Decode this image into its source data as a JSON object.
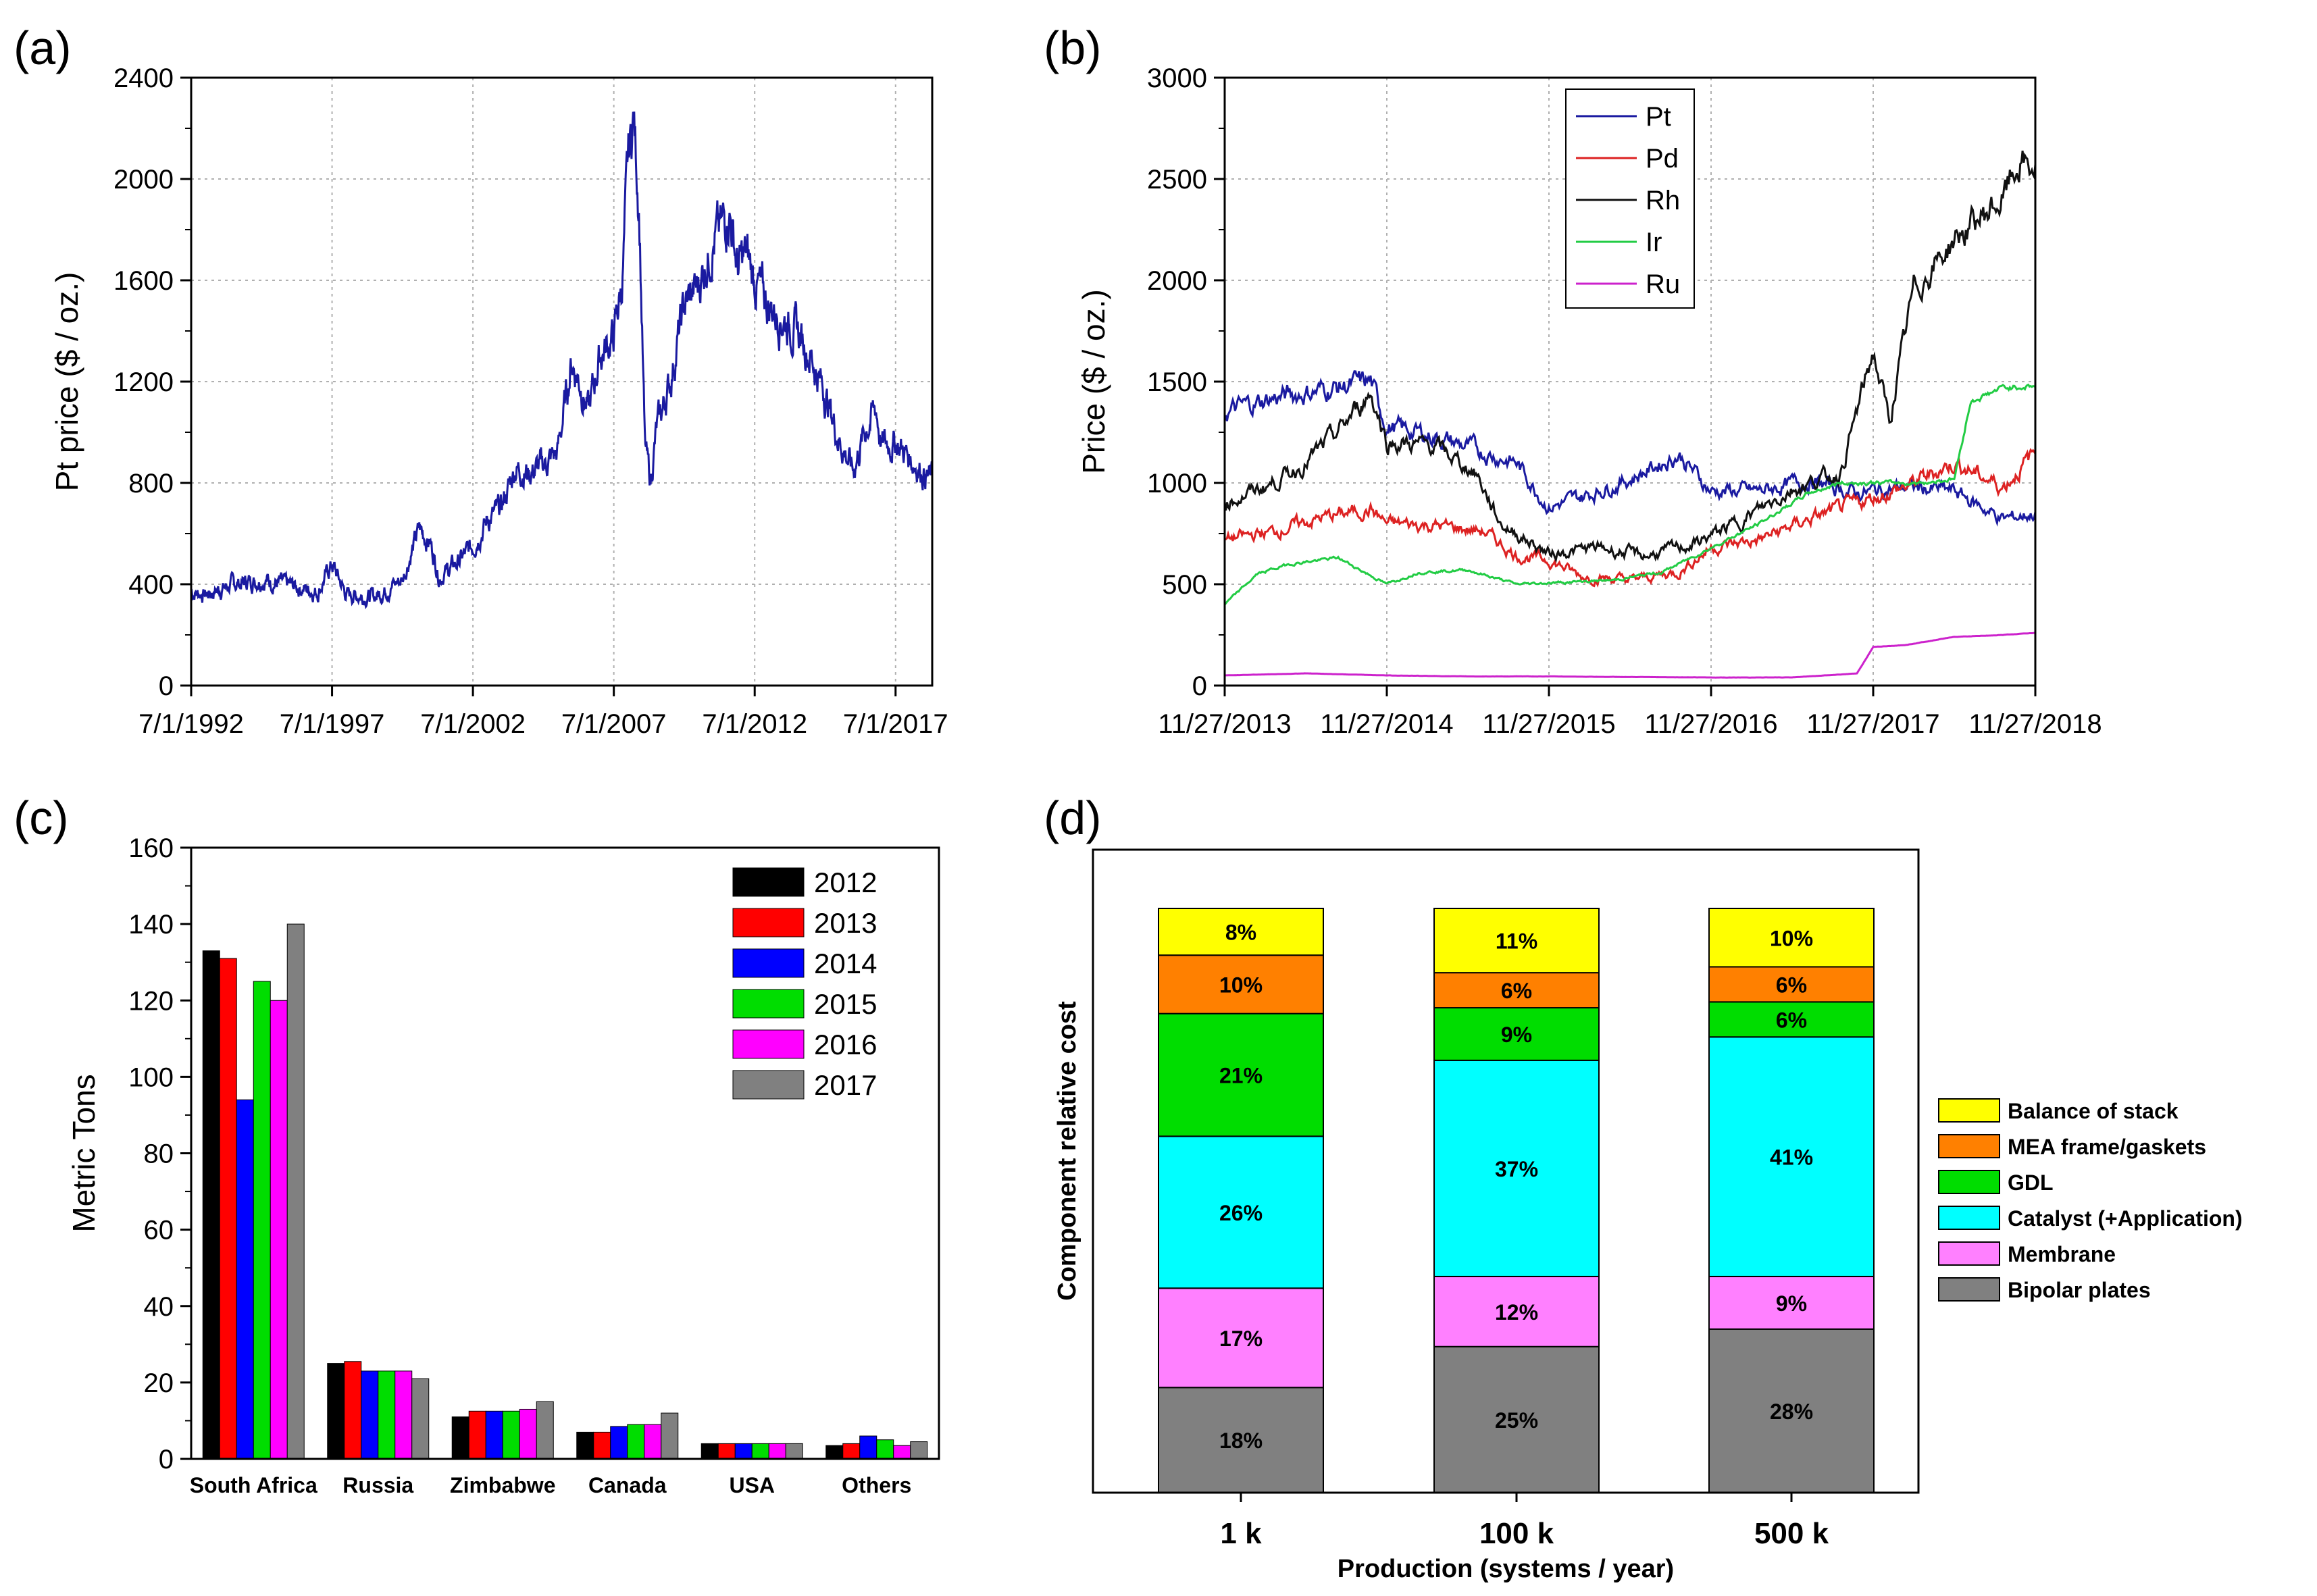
{
  "panels": {
    "a": {
      "label": "(a)",
      "chart_data": {
        "type": "line",
        "title": "",
        "xlabel": "",
        "ylabel": "Pt price ($ / oz.)",
        "xlim": [
          1992.5,
          2018.8
        ],
        "ylim": [
          0,
          2400
        ],
        "yticks": [
          0,
          400,
          800,
          1200,
          1600,
          2000,
          2400
        ],
        "xticks": [
          {
            "x": 1992.5,
            "label": "7/1/1992"
          },
          {
            "x": 1997.5,
            "label": "7/1/1997"
          },
          {
            "x": 2002.5,
            "label": "7/1/2002"
          },
          {
            "x": 2007.5,
            "label": "7/1/2007"
          },
          {
            "x": 2012.5,
            "label": "7/1/2012"
          },
          {
            "x": 2017.5,
            "label": "7/1/2017"
          }
        ],
        "grid": true,
        "series": [
          {
            "name": "Pt",
            "color": "#1a1aa0",
            "x": [
              1992.5,
              1993,
              1994,
              1995,
              1996,
              1997,
              1997.5,
              1998,
              1999,
              2000,
              2000.6,
              2001,
              2001.3,
              2001.9,
              2002.5,
              2003,
              2003.5,
              2004,
              2004.5,
              2005,
              2005.5,
              2006,
              2006.3,
              2006.6,
              2007,
              2007.5,
              2007.8,
              2008,
              2008.2,
              2008.4,
              2008.6,
              2008.8,
              2009,
              2009.5,
              2010,
              2010.5,
              2011,
              2011.3,
              2011.6,
              2011.9,
              2012.2,
              2012.5,
              2013,
              2013.5,
              2014,
              2014.5,
              2015,
              2015.5,
              2016,
              2016.4,
              2016.8,
              2017,
              2017.5,
              2018,
              2018.5,
              2018.8
            ],
            "y": [
              370,
              360,
              400,
              420,
              395,
              370,
              480,
              360,
              350,
              420,
              620,
              560,
              430,
              480,
              550,
              650,
              700,
              860,
              840,
              870,
              920,
              1280,
              1200,
              1080,
              1300,
              1380,
              1600,
              2050,
              2250,
              1900,
              950,
              800,
              1000,
              1200,
              1500,
              1580,
              1750,
              1800,
              1880,
              1650,
              1700,
              1600,
              1500,
              1450,
              1400,
              1300,
              1150,
              970,
              850,
              1000,
              1100,
              950,
              960,
              900,
              840,
              820
            ]
          }
        ]
      }
    },
    "b": {
      "label": "(b)",
      "chart_data": {
        "type": "line",
        "title": "",
        "xlabel": "",
        "ylabel": "Price ($ / oz.)",
        "xlim": [
          0,
          5
        ],
        "ylim": [
          0,
          3000
        ],
        "yticks": [
          0,
          500,
          1000,
          1500,
          2000,
          2500,
          3000
        ],
        "xticks": [
          "11/27/2013",
          "11/27/2014",
          "11/27/2015",
          "11/27/2016",
          "11/27/2017",
          "11/27/2018"
        ],
        "legend_position": "top-left",
        "grid": true,
        "series": [
          {
            "name": "Pt",
            "color": "#1a1aa0",
            "x": [
              0,
              0.3,
              0.6,
              0.9,
              1.0,
              1.3,
              1.6,
              1.8,
              2.0,
              2.2,
              2.5,
              2.8,
              3.0,
              3.3,
              3.6,
              3.9,
              4.2,
              4.5,
              4.8,
              5.0
            ],
            "y": [
              1350,
              1420,
              1460,
              1500,
              1280,
              1230,
              1150,
              1100,
              880,
              930,
              1020,
              1140,
              960,
              960,
              1010,
              950,
              980,
              960,
              820,
              850
            ]
          },
          {
            "name": "Pd",
            "color": "#dd2222",
            "x": [
              0,
              0.3,
              0.6,
              0.9,
              1.0,
              1.3,
              1.6,
              1.8,
              2.0,
              2.2,
              2.5,
              2.8,
              3.0,
              3.3,
              3.6,
              3.9,
              4.2,
              4.5,
              4.8,
              5.0
            ],
            "y": [
              720,
              760,
              830,
              870,
              800,
              790,
              760,
              640,
              620,
              540,
              520,
              560,
              680,
              720,
              820,
              900,
              980,
              1100,
              980,
              1150
            ]
          },
          {
            "name": "Rh",
            "color": "#111111",
            "x": [
              0,
              0.3,
              0.5,
              0.7,
              0.9,
              1.0,
              1.3,
              1.55,
              1.7,
              2.0,
              2.3,
              2.6,
              2.9,
              3.2,
              3.5,
              3.8,
              3.95,
              4.0,
              4.1,
              4.25,
              4.5,
              4.8,
              4.9,
              5.0
            ],
            "y": [
              900,
              1000,
              1100,
              1250,
              1450,
              1200,
              1180,
              1050,
              800,
              650,
              680,
              640,
              700,
              820,
              970,
              1050,
              1500,
              1650,
              1300,
              1950,
              2200,
              2400,
              2580,
              2550
            ]
          },
          {
            "name": "Ir",
            "color": "#22cc44",
            "x": [
              0,
              0.2,
              0.4,
              0.7,
              1.0,
              1.2,
              1.5,
              1.8,
              2.1,
              2.4,
              2.7,
              3.0,
              3.3,
              3.6,
              3.8,
              4.0,
              4.3,
              4.5,
              4.6,
              4.8,
              5.0
            ],
            "y": [
              400,
              550,
              600,
              630,
              500,
              560,
              570,
              500,
              510,
              520,
              560,
              680,
              800,
              950,
              1000,
              1000,
              1000,
              1020,
              1400,
              1470,
              1480
            ]
          },
          {
            "name": "Ru",
            "color": "#cc22cc",
            "x": [
              0,
              0.5,
              1.0,
              1.5,
              2.0,
              2.5,
              3.0,
              3.5,
              3.9,
              4.0,
              4.2,
              4.5,
              4.8,
              5.0
            ],
            "y": [
              50,
              60,
              50,
              45,
              45,
              42,
              40,
              40,
              60,
              190,
              200,
              240,
              250,
              260
            ]
          }
        ]
      }
    },
    "c": {
      "label": "(c)",
      "chart_data": {
        "type": "bar",
        "title": "",
        "xlabel": "",
        "ylabel": "Metric Tons",
        "ylim": [
          0,
          160
        ],
        "yticks": [
          0,
          20,
          40,
          60,
          80,
          100,
          120,
          140,
          160
        ],
        "categories": [
          "South Africa",
          "Russia",
          "Zimbabwe",
          "Canada",
          "USA",
          "Others"
        ],
        "legend_position": "top-right",
        "series": [
          {
            "name": "2012",
            "color": "#000000",
            "values": [
              133,
              25,
              11,
              7,
              4,
              3.5
            ]
          },
          {
            "name": "2013",
            "color": "#ff0000",
            "values": [
              131,
              25.5,
              12.5,
              7,
              4,
              4
            ]
          },
          {
            "name": "2014",
            "color": "#0000ff",
            "values": [
              94,
              23,
              12.5,
              8.5,
              4,
              6
            ]
          },
          {
            "name": "2015",
            "color": "#00dd00",
            "values": [
              125,
              23,
              12.5,
              9,
              4,
              5
            ]
          },
          {
            "name": "2016",
            "color": "#ff00ff",
            "values": [
              120,
              23,
              13,
              9,
              4,
              3.5
            ]
          },
          {
            "name": "2017",
            "color": "#808080",
            "values": [
              140,
              21,
              15,
              12,
              4,
              4.5
            ]
          }
        ]
      }
    },
    "d": {
      "label": "(d)",
      "chart_data": {
        "type": "bar",
        "stacked": true,
        "title": "",
        "xlabel": "Production (systems / year)",
        "ylabel": "Component relative cost",
        "categories": [
          "1 k",
          "100 k",
          "500 k"
        ],
        "legend_position": "right",
        "series": [
          {
            "name": "Bipolar plates",
            "color": "#808080",
            "values": [
              18,
              25,
              28
            ],
            "labels": [
              "18%",
              "25%",
              "28%"
            ]
          },
          {
            "name": "Membrane",
            "color": "#ff80ff",
            "values": [
              17,
              12,
              9
            ],
            "labels": [
              "17%",
              "12%",
              "9%"
            ]
          },
          {
            "name": "Catalyst (+Application)",
            "color": "#00ffff",
            "values": [
              26,
              37,
              41
            ],
            "labels": [
              "26%",
              "37%",
              "41%"
            ]
          },
          {
            "name": "GDL",
            "color": "#00dd00",
            "values": [
              21,
              9,
              6
            ],
            "labels": [
              "21%",
              "9%",
              "6%"
            ]
          },
          {
            "name": "MEA frame/gaskets",
            "color": "#ff8000",
            "values": [
              10,
              6,
              6
            ],
            "labels": [
              "10%",
              "6%",
              "6%"
            ]
          },
          {
            "name": "Balance of stack",
            "color": "#ffff00",
            "values": [
              8,
              11,
              10
            ],
            "labels": [
              "8%",
              "11%",
              "10%"
            ]
          }
        ]
      }
    }
  }
}
